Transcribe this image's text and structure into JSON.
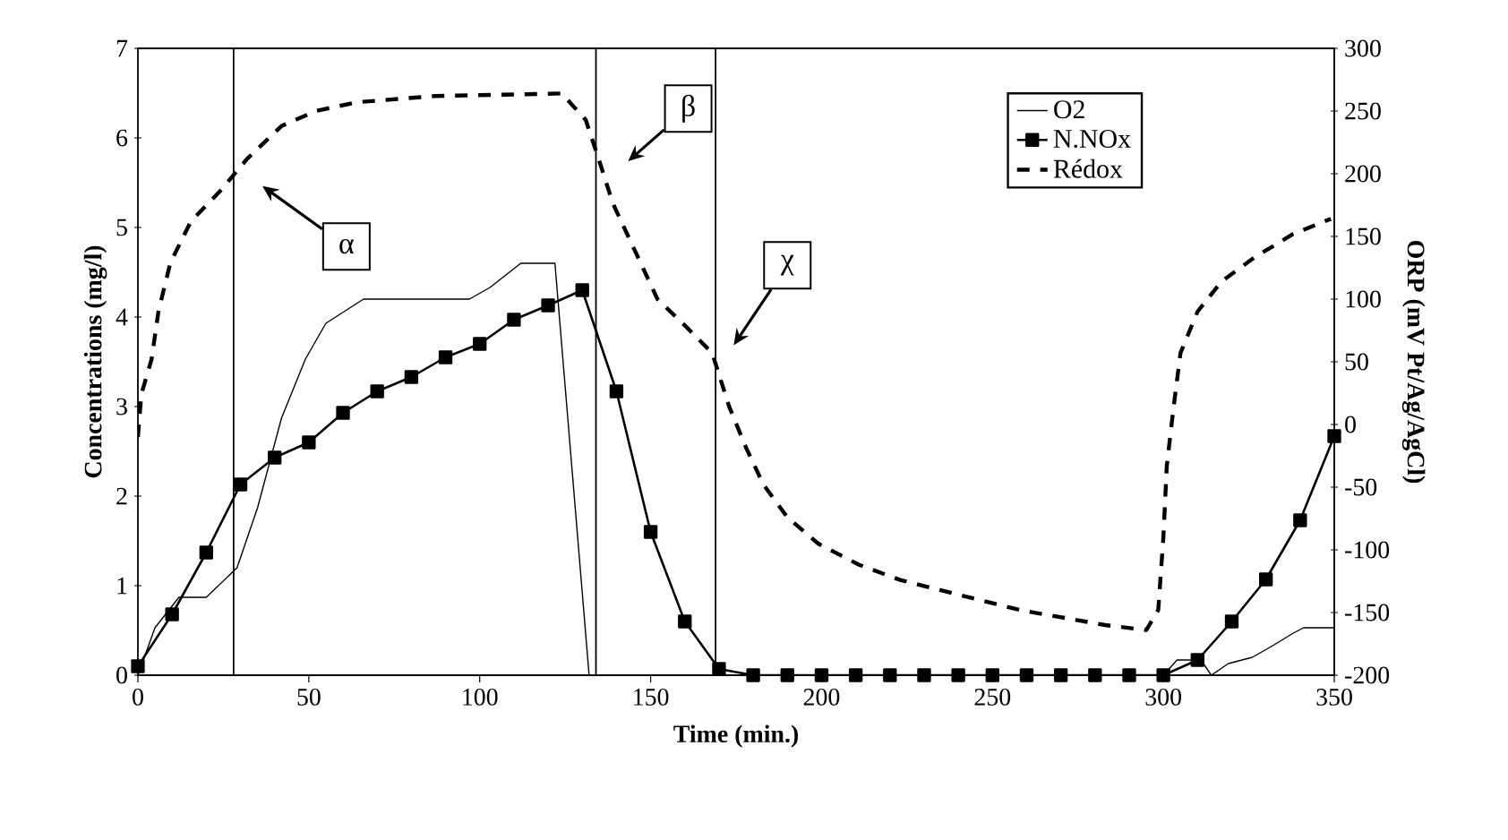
{
  "chart_data": {
    "type": "line",
    "xlabel": "Time (min.)",
    "ylabel": "Concentrations (mg/l)",
    "y2label": "ORP (mV Pt/Ag/AgCl)",
    "xlim": [
      0,
      350
    ],
    "xticks": [
      0,
      50,
      100,
      150,
      200,
      250,
      300,
      350
    ],
    "ylim": [
      0,
      7
    ],
    "yticks": [
      0,
      1,
      2,
      3,
      4,
      5,
      6,
      7
    ],
    "y2lim": [
      -200,
      300
    ],
    "y2ticks": [
      -200,
      -150,
      -100,
      -50,
      0,
      50,
      100,
      150,
      200,
      250,
      300
    ],
    "grid": false,
    "legend": "top right",
    "series": [
      {
        "name": "O2",
        "color": "#000000",
        "marker": "none",
        "line_style": "solid",
        "x": [
          0,
          5,
          12,
          20,
          29,
          35,
          42,
          49,
          55,
          66,
          97,
          103,
          112,
          122,
          132,
          300,
          304,
          311,
          314,
          319,
          326,
          332,
          338,
          341,
          350
        ],
        "values": [
          0,
          0.53,
          0.87,
          0.87,
          1.2,
          1.87,
          2.87,
          3.53,
          3.93,
          4.2,
          4.2,
          4.33,
          4.6,
          4.6,
          0,
          0,
          0.17,
          0.17,
          0.0,
          0.13,
          0.2,
          0.33,
          0.47,
          0.53,
          0.53
        ]
      },
      {
        "name": "N.NOx",
        "color": "#000000",
        "marker": "square",
        "line_style": "solid",
        "x": [
          0,
          10,
          20,
          30,
          40,
          50,
          60,
          70,
          80,
          90,
          100,
          110,
          120,
          130,
          140,
          150,
          160,
          170,
          180,
          190,
          200,
          210,
          220,
          230,
          240,
          250,
          260,
          270,
          280,
          290,
          300,
          310,
          320,
          330,
          340,
          350
        ],
        "values": [
          0.1,
          0.68,
          1.37,
          2.13,
          2.43,
          2.6,
          2.93,
          3.17,
          3.33,
          3.55,
          3.7,
          3.97,
          4.13,
          4.3,
          3.17,
          1.6,
          0.6,
          0.07,
          0.0,
          0.0,
          0.0,
          0.0,
          0.0,
          0.0,
          0.0,
          0.0,
          0.0,
          0.0,
          0.0,
          0.0,
          0.0,
          0.17,
          0.6,
          1.07,
          1.73,
          2.67
        ]
      },
      {
        "name": "Rédox",
        "color": "#000000",
        "marker": "none",
        "line_style": "dashed",
        "axis": "y2",
        "x": [
          0,
          1,
          4,
          6,
          9.5,
          15.5,
          24,
          32,
          42,
          52,
          64,
          87,
          124,
          131,
          135,
          139,
          152,
          160,
          168,
          173,
          178,
          183,
          190,
          199,
          211,
          223,
          236,
          258,
          283,
          295,
          298.5,
          300,
          301,
          303,
          305,
          310,
          317,
          326.5,
          338,
          349
        ],
        "values": [
          -10,
          24,
          52,
          90,
          129,
          162,
          186,
          212,
          238,
          250,
          257,
          262,
          264,
          243,
          210,
          176,
          100,
          79,
          57,
          14,
          -19,
          -48,
          -74,
          -95,
          -112,
          -124,
          -133,
          -148,
          -160,
          -164,
          -148,
          -90,
          -33,
          14,
          57,
          90,
          114,
          133,
          152,
          164
        ]
      }
    ],
    "ref_lines": [
      {
        "axis": "x",
        "value": 28,
        "color": "#000000"
      },
      {
        "axis": "x",
        "value": 134,
        "color": "#000000"
      },
      {
        "axis": "x",
        "value": 169,
        "color": "#000000"
      }
    ],
    "annotations": [
      "α",
      "β",
      "χ"
    ]
  }
}
